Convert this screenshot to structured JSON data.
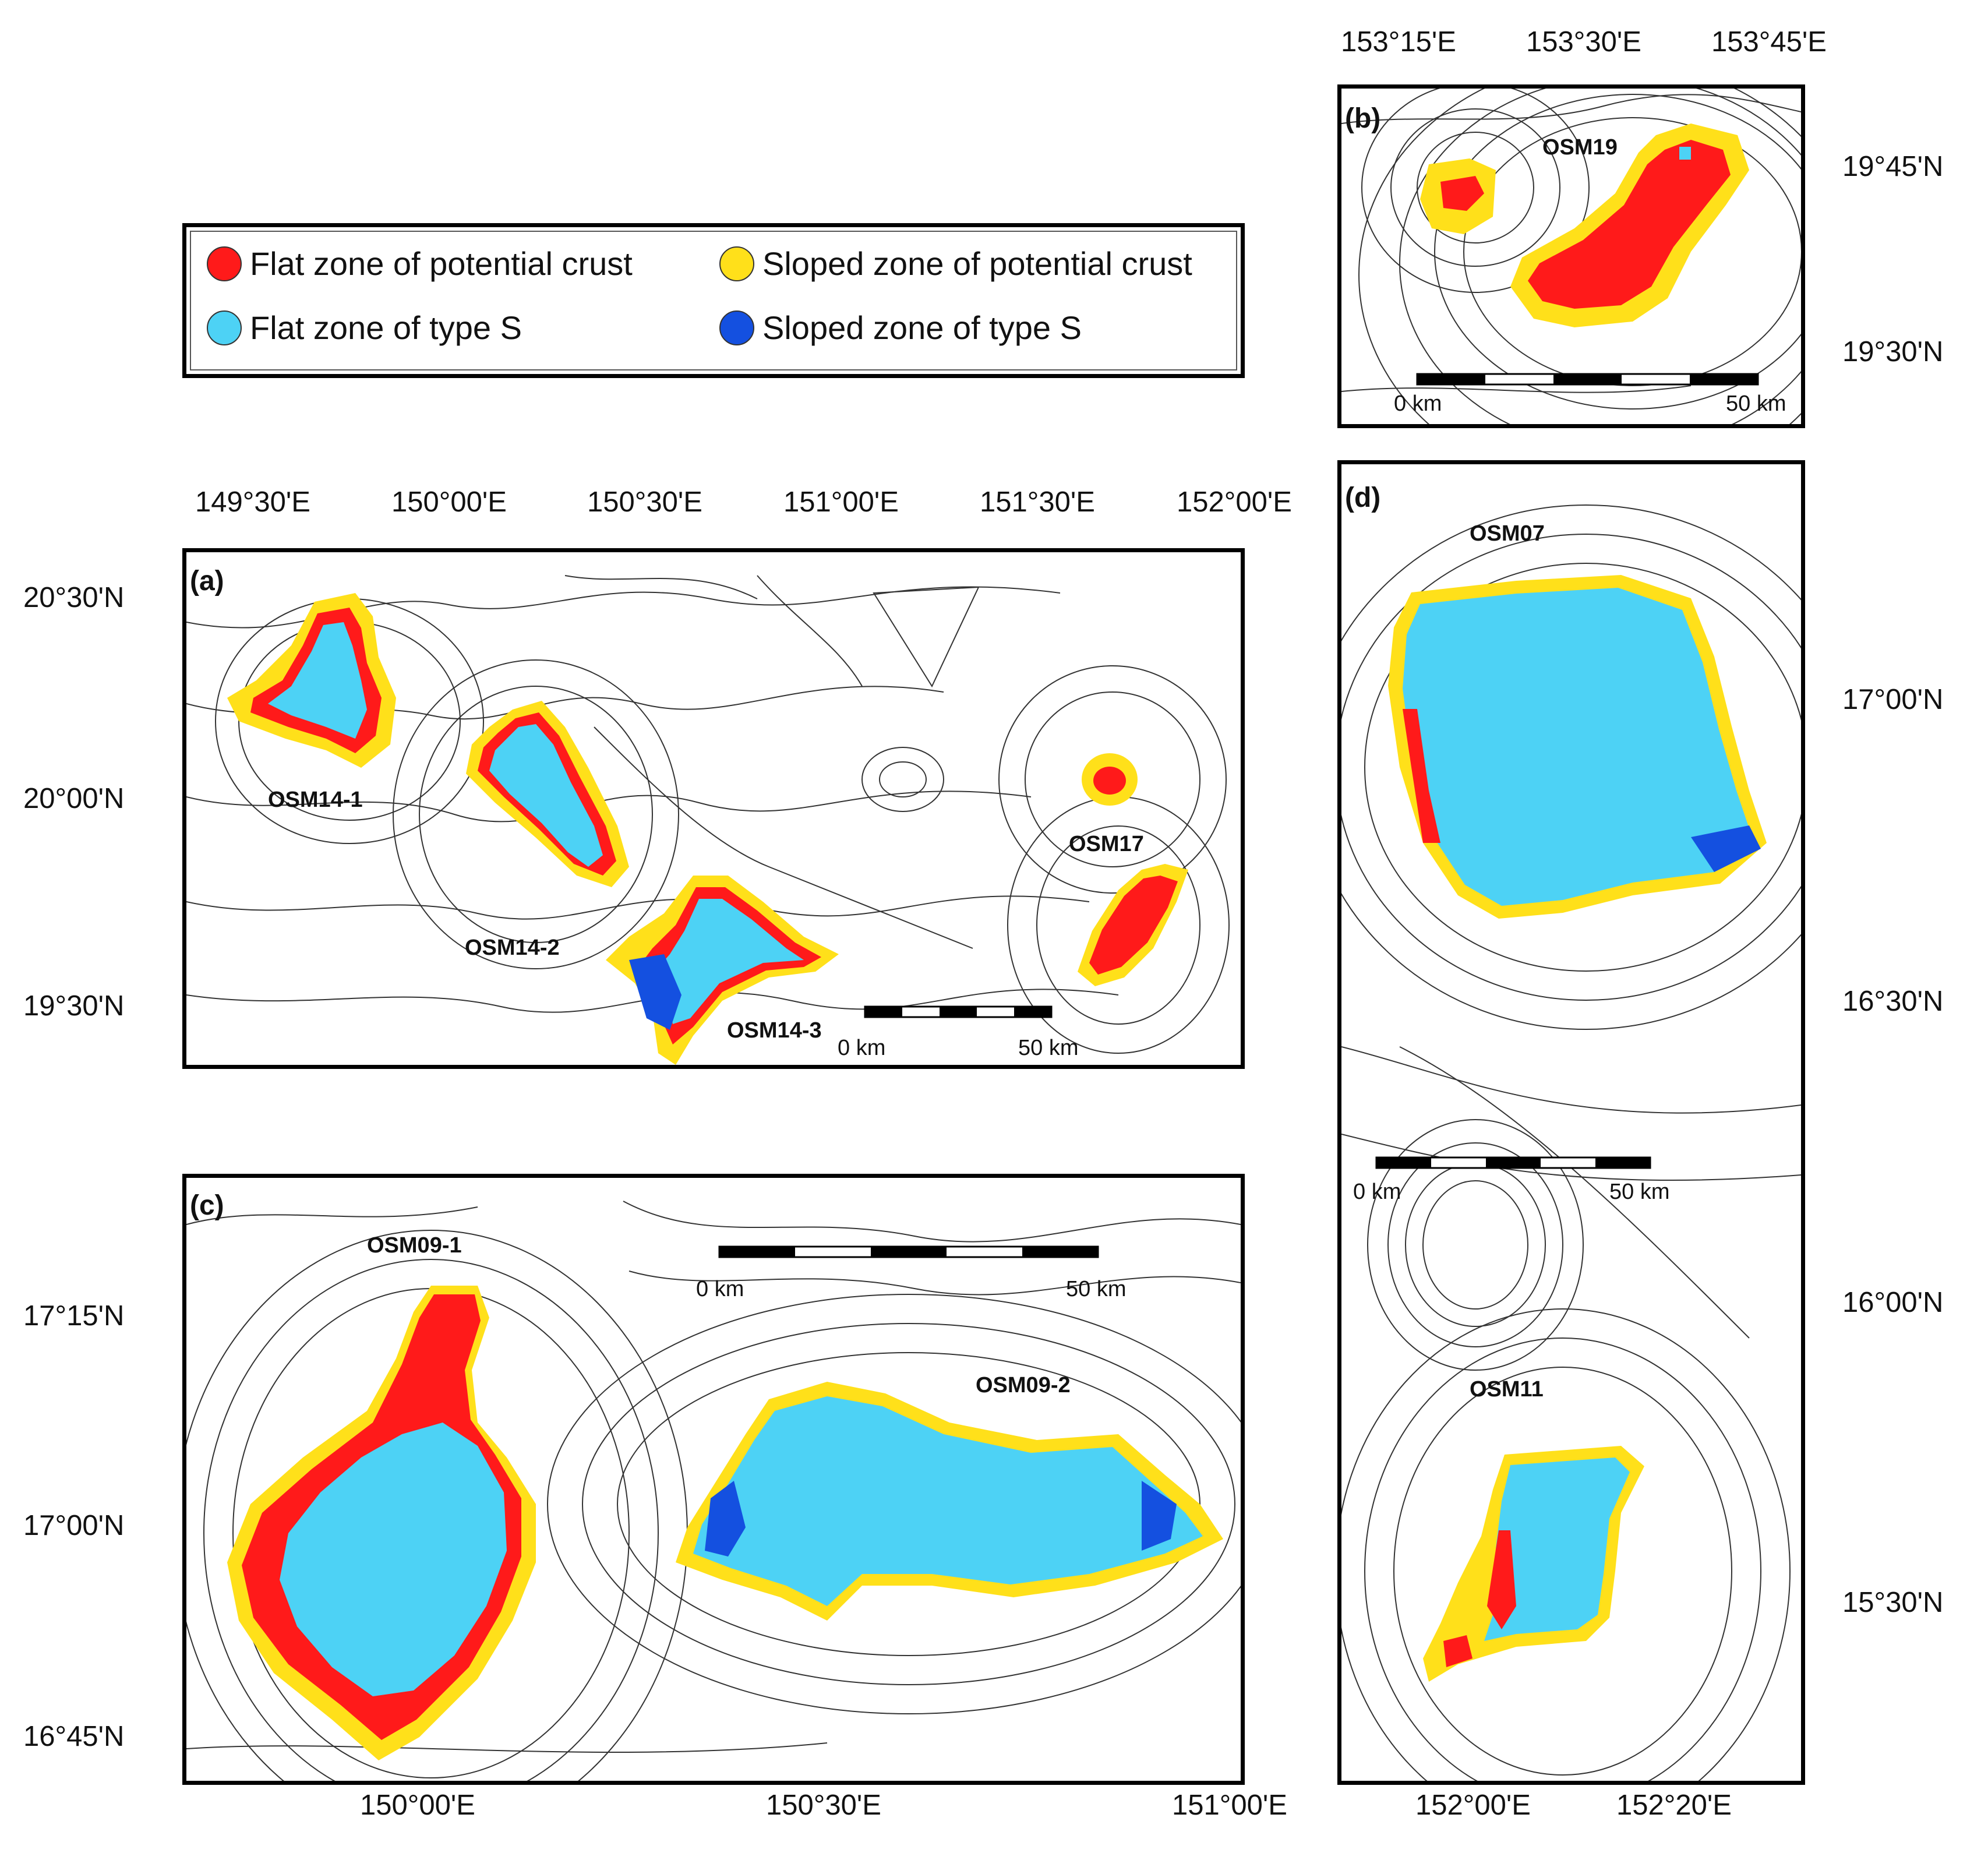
{
  "legend": {
    "items": [
      {
        "label": "Flat zone of potential crust",
        "color": "#ff1a1a"
      },
      {
        "label": "Sloped zone of potential crust",
        "color": "#ffe01a"
      },
      {
        "label": "Flat zone of type S",
        "color": "#4dd2f5"
      },
      {
        "label": "Sloped zone of type S",
        "color": "#1450e0"
      }
    ]
  },
  "colors": {
    "flat_crust": "#ff1a1a",
    "sloped_crust": "#ffe01a",
    "flat_s": "#4dd2f5",
    "sloped_s": "#1450e0",
    "contour": "#333333"
  },
  "panels": {
    "a": {
      "label": "(a)",
      "lon_labels": [
        "149°30'E",
        "150°00'E",
        "150°30'E",
        "151°00'E",
        "151°30'E",
        "152°00'E"
      ],
      "lat_labels": [
        "20°30'N",
        "20°00'N",
        "19°30'N"
      ],
      "seamounts": [
        "OSM14-1",
        "OSM14-2",
        "OSM14-3",
        "OSM17"
      ],
      "scale": {
        "start": "0 km",
        "end": "50 km"
      }
    },
    "b": {
      "label": "(b)",
      "lon_labels": [
        "153°15'E",
        "153°30'E",
        "153°45'E"
      ],
      "lat_labels": [
        "19°45'N",
        "19°30'N"
      ],
      "seamounts": [
        "OSM19"
      ],
      "scale": {
        "start": "0 km",
        "end": "50 km"
      }
    },
    "c": {
      "label": "(c)",
      "lon_labels": [
        "150°00'E",
        "150°30'E",
        "151°00'E"
      ],
      "lat_labels": [
        "17°15'N",
        "17°00'N",
        "16°45'N"
      ],
      "seamounts": [
        "OSM09-1",
        "OSM09-2"
      ],
      "scale": {
        "start": "0 km",
        "end": "50 km"
      }
    },
    "d": {
      "label": "(d)",
      "lon_labels": [
        "152°00'E",
        "152°20'E"
      ],
      "lat_labels": [
        "17°00'N",
        "16°30'N",
        "16°00'N",
        "15°30'N"
      ],
      "seamounts": [
        "OSM07",
        "OSM11"
      ],
      "scale": {
        "start": "0 km",
        "end": "50 km"
      }
    }
  }
}
